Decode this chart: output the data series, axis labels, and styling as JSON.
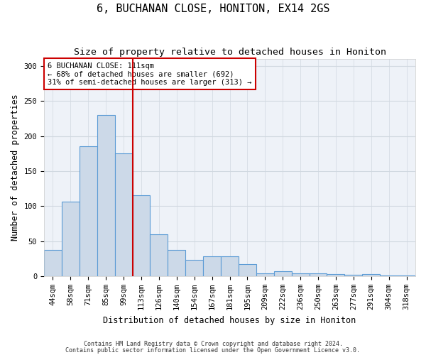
{
  "title": "6, BUCHANAN CLOSE, HONITON, EX14 2GS",
  "subtitle": "Size of property relative to detached houses in Honiton",
  "xlabel": "Distribution of detached houses by size in Honiton",
  "ylabel": "Number of detached properties",
  "categories": [
    "44sqm",
    "58sqm",
    "71sqm",
    "85sqm",
    "99sqm",
    "113sqm",
    "126sqm",
    "140sqm",
    "154sqm",
    "167sqm",
    "181sqm",
    "195sqm",
    "209sqm",
    "222sqm",
    "236sqm",
    "250sqm",
    "263sqm",
    "277sqm",
    "291sqm",
    "304sqm",
    "318sqm"
  ],
  "values": [
    37,
    106,
    185,
    230,
    175,
    115,
    60,
    37,
    23,
    28,
    28,
    17,
    4,
    7,
    4,
    4,
    3,
    2,
    3,
    1,
    1
  ],
  "bar_color": "#ccd9e8",
  "bar_edge_color": "#5b9bd5",
  "bar_width": 1.0,
  "ylim": [
    0,
    310
  ],
  "yticks": [
    0,
    50,
    100,
    150,
    200,
    250,
    300
  ],
  "red_line_index": 4.5,
  "annotation_line1": "6 BUCHANAN CLOSE: 111sqm",
  "annotation_line2": "← 68% of detached houses are smaller (692)",
  "annotation_line3": "31% of semi-detached houses are larger (313) →",
  "title_fontsize": 11,
  "subtitle_fontsize": 9.5,
  "axis_label_fontsize": 8.5,
  "tick_fontsize": 7.5,
  "annotation_fontsize": 7.5,
  "background_color": "#ffffff",
  "plot_bg_color": "#eef2f8",
  "grid_color": "#d0d8e0",
  "footer_line1": "Contains HM Land Registry data © Crown copyright and database right 2024.",
  "footer_line2": "Contains public sector information licensed under the Open Government Licence v3.0."
}
